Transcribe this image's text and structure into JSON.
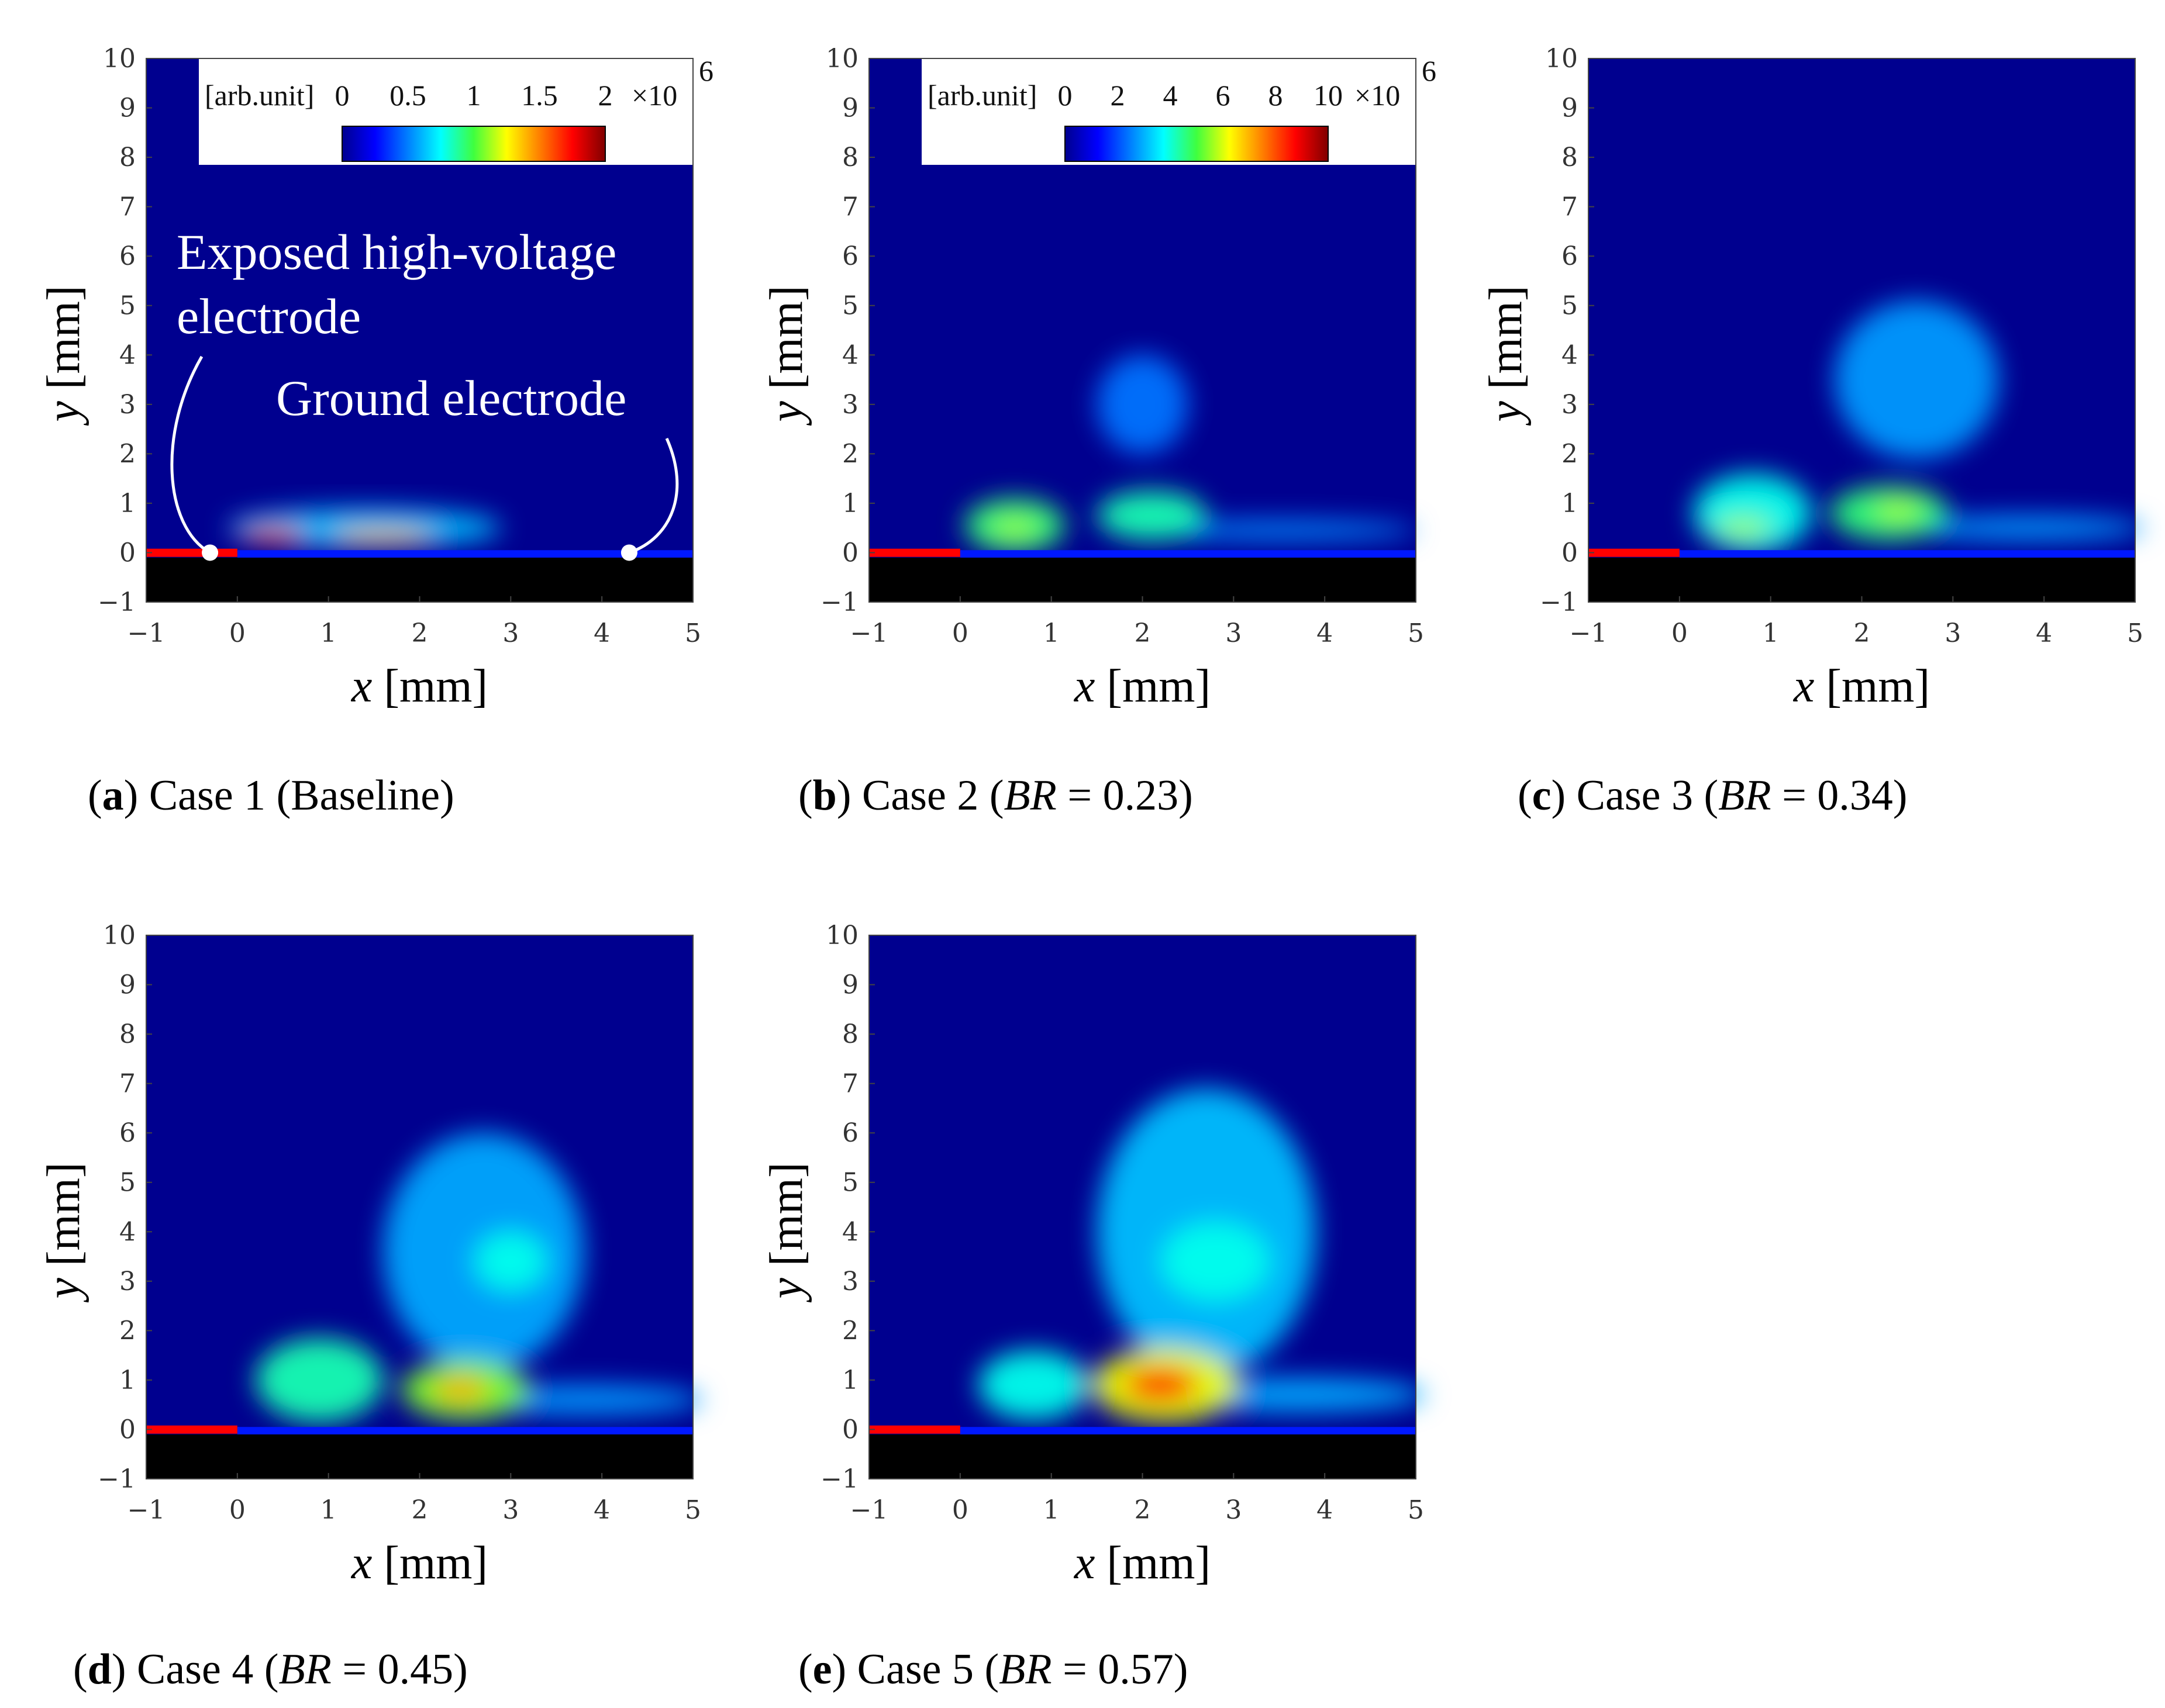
{
  "chart_data": [
    {
      "type": "heatmap",
      "panel": "a",
      "caption_letter": "a",
      "caption_text": " Case 1 (Baseline)",
      "xlabel": "x [mm]",
      "ylabel": "y [mm]",
      "xlim": [
        -1,
        5
      ],
      "ylim": [
        -1,
        10
      ],
      "xticks": [
        "−1",
        "0",
        "1",
        "2",
        "3",
        "4",
        "5"
      ],
      "yticks": [
        "−1",
        "0",
        "1",
        "2",
        "3",
        "4",
        "5",
        "6",
        "7",
        "8",
        "9",
        "10"
      ],
      "colorbar": {
        "unit": "[arb.unit]",
        "ticks": [
          "0",
          "0.5",
          "1",
          "1.5",
          "2"
        ],
        "multiplier": "×10",
        "exponent": "6",
        "min": 0,
        "max": 2000000
      },
      "annotations": [
        "Exposed high-voltage",
        "electrode",
        "Ground electrode"
      ],
      "electrode_marks_x": [
        -0.3,
        4.3
      ],
      "blobs": [
        {
          "x": 0.4,
          "y": 0.35,
          "rx": 0.35,
          "ry": 0.15,
          "intensity": 0.9
        },
        {
          "x": 1.6,
          "y": 0.33,
          "rx": 0.55,
          "ry": 0.14,
          "intensity": 0.75
        },
        {
          "x": 1.4,
          "y": 0.5,
          "rx": 1.5,
          "ry": 0.4,
          "intensity": 0.25
        }
      ]
    },
    {
      "type": "heatmap",
      "panel": "b",
      "caption_letter": "b",
      "caption_text": " Case 2 (",
      "caption_italic": "BR",
      "caption_rest": " = 0.23)",
      "xlabel": "x [mm]",
      "ylabel": "y [mm]",
      "xlim": [
        -1,
        5
      ],
      "ylim": [
        -1,
        10
      ],
      "xticks": [
        "−1",
        "0",
        "1",
        "2",
        "3",
        "4",
        "5"
      ],
      "yticks": [
        "−1",
        "0",
        "1",
        "2",
        "3",
        "4",
        "5",
        "6",
        "7",
        "8",
        "9",
        "10"
      ],
      "colorbar": {
        "unit": "[arb.unit]",
        "ticks": [
          "0",
          "2",
          "4",
          "6",
          "8",
          "10"
        ],
        "multiplier": "×10",
        "exponent": "6",
        "min": 0,
        "max": 10000000
      },
      "blobs": [
        {
          "x": 0.6,
          "y": 0.55,
          "rx": 0.55,
          "ry": 0.55,
          "intensity": 0.45
        },
        {
          "x": 0.6,
          "y": 0.5,
          "rx": 0.25,
          "ry": 0.15,
          "intensity": 0.6
        },
        {
          "x": 2.1,
          "y": 0.75,
          "rx": 0.6,
          "ry": 0.5,
          "intensity": 0.4
        },
        {
          "x": 2.0,
          "y": 3.0,
          "rx": 0.5,
          "ry": 1.0,
          "intensity": 0.15
        },
        {
          "x": 3.5,
          "y": 0.45,
          "rx": 1.5,
          "ry": 0.2,
          "intensity": 0.18
        }
      ]
    },
    {
      "type": "heatmap",
      "panel": "c",
      "caption_letter": "c",
      "caption_text": " Case 3 (",
      "caption_italic": "BR",
      "caption_rest": " = 0.34)",
      "xlabel": "x [mm]",
      "ylabel": "y [mm]",
      "xlim": [
        -1,
        5
      ],
      "ylim": [
        -1,
        10
      ],
      "xticks": [
        "−1",
        "0",
        "1",
        "2",
        "3",
        "4",
        "5"
      ],
      "yticks": [
        "−1",
        "0",
        "1",
        "2",
        "3",
        "4",
        "5",
        "6",
        "7",
        "8",
        "9",
        "10"
      ],
      "blobs": [
        {
          "x": 0.8,
          "y": 0.8,
          "rx": 0.65,
          "ry": 0.8,
          "intensity": 0.35
        },
        {
          "x": 0.7,
          "y": 0.5,
          "rx": 0.3,
          "ry": 0.18,
          "intensity": 0.6
        },
        {
          "x": 2.3,
          "y": 0.8,
          "rx": 0.65,
          "ry": 0.55,
          "intensity": 0.45
        },
        {
          "x": 2.4,
          "y": 0.85,
          "rx": 0.25,
          "ry": 0.18,
          "intensity": 0.6
        },
        {
          "x": 2.6,
          "y": 3.5,
          "rx": 0.9,
          "ry": 1.6,
          "intensity": 0.2
        },
        {
          "x": 3.8,
          "y": 0.5,
          "rx": 1.3,
          "ry": 0.25,
          "intensity": 0.2
        }
      ]
    },
    {
      "type": "heatmap",
      "panel": "d",
      "caption_letter": "d",
      "caption_text": " Case 4 (",
      "caption_italic": "BR",
      "caption_rest": " = 0.45)",
      "xlabel": "x [mm]",
      "ylabel": "y [mm]",
      "xlim": [
        -1,
        5
      ],
      "ylim": [
        -1,
        10
      ],
      "xticks": [
        "−1",
        "0",
        "1",
        "2",
        "3",
        "4",
        "5"
      ],
      "yticks": [
        "−1",
        "0",
        "1",
        "2",
        "3",
        "4",
        "5",
        "6",
        "7",
        "8",
        "9",
        "10"
      ],
      "blobs": [
        {
          "x": 0.9,
          "y": 1.0,
          "rx": 0.7,
          "ry": 0.85,
          "intensity": 0.4
        },
        {
          "x": 2.5,
          "y": 0.8,
          "rx": 0.7,
          "ry": 0.6,
          "intensity": 0.55
        },
        {
          "x": 2.45,
          "y": 0.8,
          "rx": 0.3,
          "ry": 0.25,
          "intensity": 0.78
        },
        {
          "x": 2.7,
          "y": 3.6,
          "rx": 1.1,
          "ry": 2.4,
          "intensity": 0.22
        },
        {
          "x": 3.0,
          "y": 3.4,
          "rx": 0.4,
          "ry": 0.6,
          "intensity": 0.35
        },
        {
          "x": 3.8,
          "y": 0.6,
          "rx": 1.3,
          "ry": 0.3,
          "intensity": 0.2
        }
      ]
    },
    {
      "type": "heatmap",
      "panel": "e",
      "caption_letter": "e",
      "caption_text": " Case 5 (",
      "caption_italic": "BR",
      "caption_rest": " = 0.57)",
      "xlabel": "x [mm]",
      "ylabel": "y [mm]",
      "xlim": [
        -1,
        5
      ],
      "ylim": [
        -1,
        10
      ],
      "xticks": [
        "−1",
        "0",
        "1",
        "2",
        "3",
        "4",
        "5"
      ],
      "yticks": [
        "−1",
        "0",
        "1",
        "2",
        "3",
        "4",
        "5",
        "6",
        "7",
        "8",
        "9",
        "10"
      ],
      "blobs": [
        {
          "x": 0.8,
          "y": 0.9,
          "rx": 0.6,
          "ry": 0.7,
          "intensity": 0.35
        },
        {
          "x": 2.25,
          "y": 0.9,
          "rx": 0.8,
          "ry": 0.75,
          "intensity": 0.65
        },
        {
          "x": 2.2,
          "y": 0.9,
          "rx": 0.4,
          "ry": 0.35,
          "intensity": 0.95
        },
        {
          "x": 2.7,
          "y": 4.0,
          "rx": 1.2,
          "ry": 2.9,
          "intensity": 0.25
        },
        {
          "x": 2.8,
          "y": 3.4,
          "rx": 0.6,
          "ry": 0.8,
          "intensity": 0.35
        },
        {
          "x": 3.7,
          "y": 0.7,
          "rx": 1.4,
          "ry": 0.35,
          "intensity": 0.22
        }
      ]
    }
  ]
}
